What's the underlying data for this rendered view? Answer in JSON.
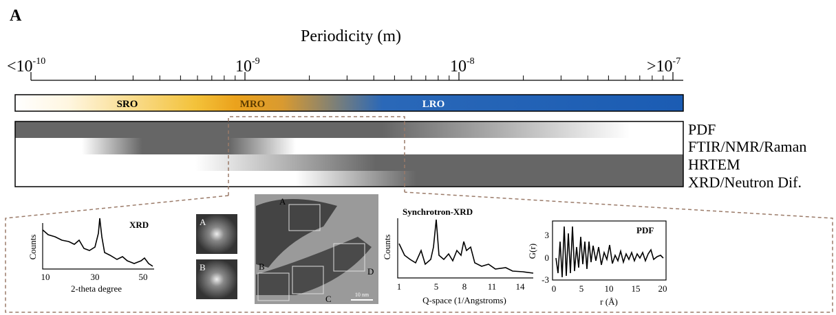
{
  "panel_label": "A",
  "axis": {
    "title": "Periodicity (m)",
    "ticks": [
      {
        "base": "<10",
        "exponent": "-10"
      },
      {
        "base": "10",
        "exponent": "-9"
      },
      {
        "base": "10",
        "exponent": "-8"
      },
      {
        "base": ">10",
        "exponent": "-7"
      }
    ]
  },
  "order_bar": {
    "labels": [
      "SRO",
      "MRO",
      "LRO"
    ]
  },
  "techniques": [
    "PDF",
    "FTIR/NMR/Raman",
    "HRTEM",
    "XRD/Neutron Dif."
  ],
  "insets": {
    "xrd": {
      "title": "XRD",
      "ylabel": "Counts",
      "xlabel": "2-theta degree",
      "xticks": [
        10,
        30,
        50
      ]
    },
    "fft": {
      "labels": [
        "A",
        "B"
      ]
    },
    "tem": {
      "labels": [
        "A",
        "B",
        "C",
        "D"
      ],
      "scale": "10 nm"
    },
    "synchrotron": {
      "title": "Synchrotron-XRD",
      "ylabel": "Counts",
      "xlabel": "Q-space (1/Angstroms)",
      "xticks": [
        1,
        5,
        8,
        11,
        14
      ]
    },
    "pdf": {
      "title": "PDF",
      "ylabel": "G(r)",
      "xlabel": "r (Å)",
      "xticks": [
        0,
        5,
        10,
        15,
        20
      ],
      "yticks": [
        3,
        0,
        -3
      ]
    }
  }
}
